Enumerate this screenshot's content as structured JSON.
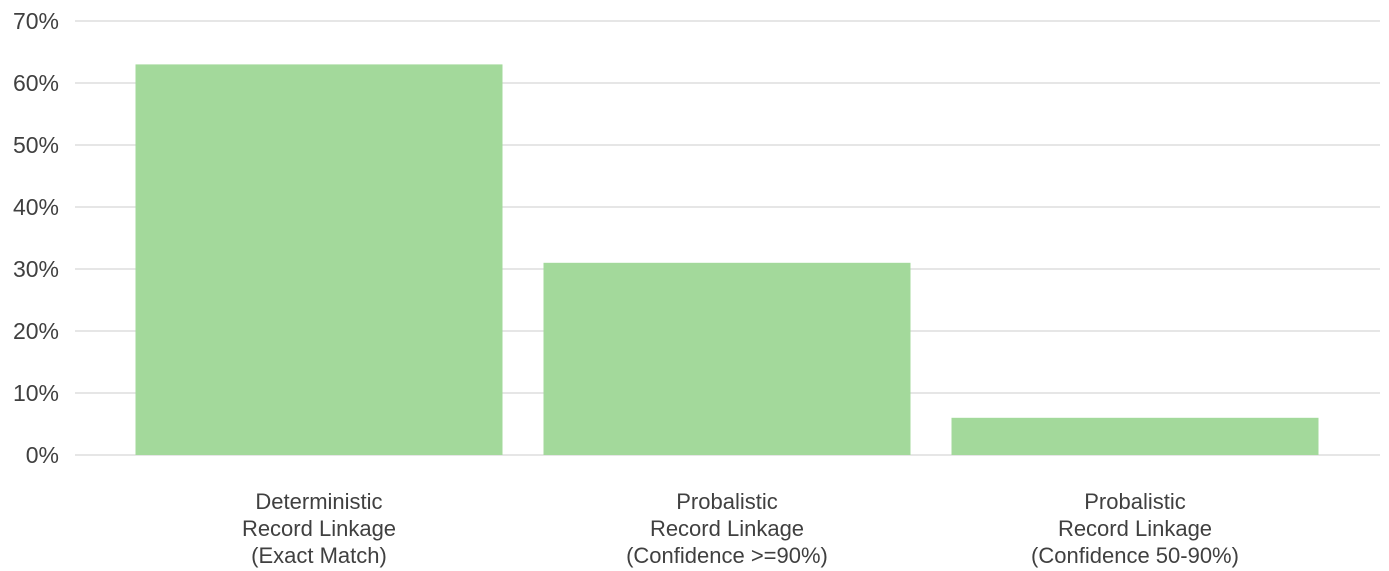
{
  "chart_data": {
    "type": "bar",
    "title": "",
    "xlabel": "",
    "ylabel": "",
    "categories": [
      [
        "Deterministic",
        "Record Linkage",
        "(Exact Match)"
      ],
      [
        "Probalistic",
        "Record Linkage",
        "(Confidence >=90%)"
      ],
      [
        "Probalistic",
        "Record Linkage",
        "(Confidence 50-90%)"
      ]
    ],
    "values": [
      63,
      31,
      6
    ],
    "value_unit": "%",
    "ylim": [
      0,
      70
    ],
    "yticks": [
      "0%",
      "10%",
      "20%",
      "30%",
      "40%",
      "50%",
      "60%",
      "70%"
    ],
    "grid": true,
    "legend": "none",
    "bar_color": "#a3d99b"
  }
}
